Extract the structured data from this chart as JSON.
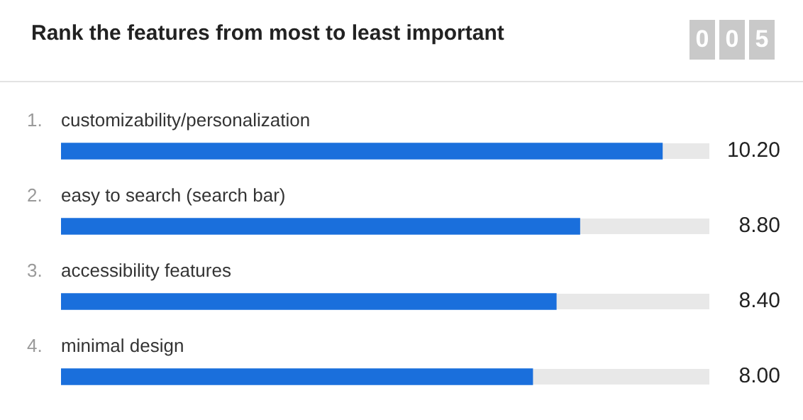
{
  "chart_data": {
    "type": "bar",
    "orientation": "horizontal",
    "title": "Rank the features from most to least important",
    "categories": [
      "customizability/personalization",
      "easy to search (search bar)",
      "accessibility features",
      "minimal design"
    ],
    "values": [
      10.2,
      8.8,
      8.4,
      8.0
    ],
    "value_labels": [
      "10.20",
      "8.80",
      "8.40",
      "8.00"
    ],
    "color": "#1a6fdc",
    "xlim": [
      0,
      11
    ],
    "annotations": [
      "0",
      "0",
      "5",
      "1.",
      "2.",
      "3.",
      "4."
    ],
    "legend": false,
    "tick_labels": false
  }
}
